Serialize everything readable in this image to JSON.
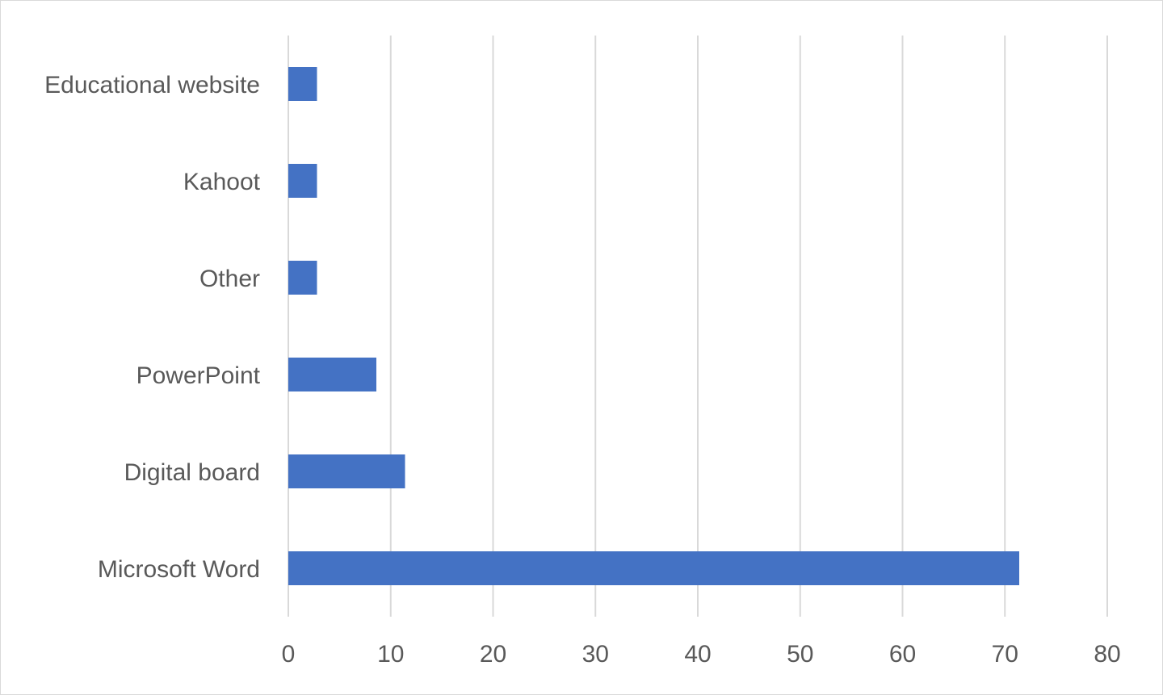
{
  "chart_data": {
    "type": "bar",
    "orientation": "horizontal",
    "categories": [
      "Educational website",
      "Kahoot",
      "Other",
      "PowerPoint",
      "Digital board",
      "Microsoft Word"
    ],
    "values": [
      2.8,
      2.8,
      2.8,
      8.6,
      11.4,
      71.4
    ],
    "x_ticks": [
      "0",
      "10",
      "20",
      "30",
      "40",
      "50",
      "60",
      "70",
      "80"
    ],
    "xlim": [
      0,
      80
    ],
    "title": "",
    "xlabel": "",
    "ylabel": "",
    "grid": "vertical",
    "legend": "none",
    "colors": {
      "bar": "#4472c4",
      "grid": "#d9d9d9",
      "text": "#595959",
      "border": "#d9d9d9"
    }
  }
}
